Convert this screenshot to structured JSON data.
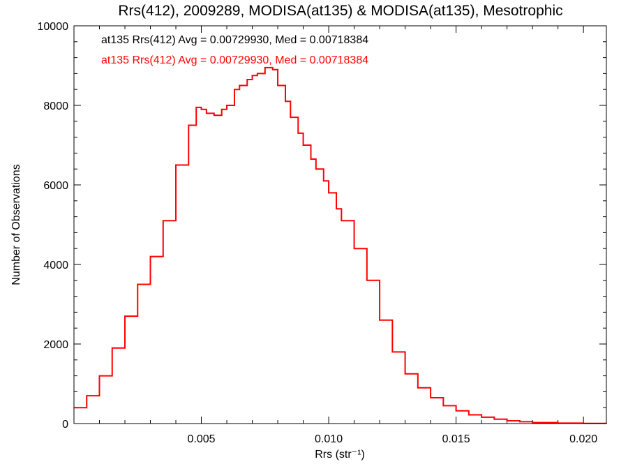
{
  "chart_data": {
    "type": "line",
    "step": true,
    "title": "Rrs(412), 2009289, MODISA(at135) & MODISA(at135), Mesotrophic",
    "xlabel": "Rrs (str⁻¹)",
    "ylabel": "Number of Observations",
    "xlim": [
      0.0,
      0.0209
    ],
    "ylim": [
      0,
      10000
    ],
    "x_ticks": [
      {
        "value": 0.005,
        "label": "0.005"
      },
      {
        "value": 0.01,
        "label": "0.010"
      },
      {
        "value": 0.015,
        "label": "0.015"
      },
      {
        "value": 0.02,
        "label": "0.020"
      }
    ],
    "y_ticks": [
      {
        "value": 0,
        "label": "0"
      },
      {
        "value": 2000,
        "label": "2000"
      },
      {
        "value": 4000,
        "label": "4000"
      },
      {
        "value": 6000,
        "label": "6000"
      },
      {
        "value": 8000,
        "label": "8000"
      },
      {
        "value": 10000,
        "label": "10000"
      }
    ],
    "grid": false,
    "annotations": [
      {
        "text": "at135 Rrs(412) Avg = 0.00729930, Med = 0.00718384",
        "color": "#000000"
      },
      {
        "text": "at135 Rrs(412) Avg = 0.00729930, Med = 0.00718384",
        "color": "#ff0000"
      }
    ],
    "series": [
      {
        "color": "#ff0000",
        "x": [
          0.0,
          0.0005,
          0.001,
          0.0015,
          0.002,
          0.0025,
          0.003,
          0.0035,
          0.004,
          0.0045,
          0.0048,
          0.005,
          0.0052,
          0.0055,
          0.0058,
          0.006,
          0.0063,
          0.0065,
          0.0068,
          0.007,
          0.0072,
          0.0075,
          0.0078,
          0.008,
          0.0083,
          0.0085,
          0.0088,
          0.009,
          0.0093,
          0.0095,
          0.0098,
          0.01,
          0.0103,
          0.0105,
          0.011,
          0.0115,
          0.012,
          0.0125,
          0.013,
          0.0135,
          0.014,
          0.0145,
          0.015,
          0.0155,
          0.016,
          0.0165,
          0.017,
          0.0175,
          0.018,
          0.019,
          0.02,
          0.0209
        ],
        "y": [
          400,
          700,
          1200,
          1900,
          2700,
          3500,
          4200,
          5100,
          6500,
          7500,
          7950,
          7900,
          7800,
          7750,
          7900,
          8000,
          8400,
          8500,
          8650,
          8750,
          8800,
          8950,
          8900,
          8500,
          8100,
          7700,
          7300,
          7000,
          6650,
          6400,
          6100,
          5800,
          5400,
          5100,
          4400,
          3600,
          2600,
          1800,
          1250,
          900,
          650,
          450,
          320,
          220,
          160,
          110,
          70,
          45,
          25,
          10,
          5,
          2
        ]
      }
    ]
  }
}
